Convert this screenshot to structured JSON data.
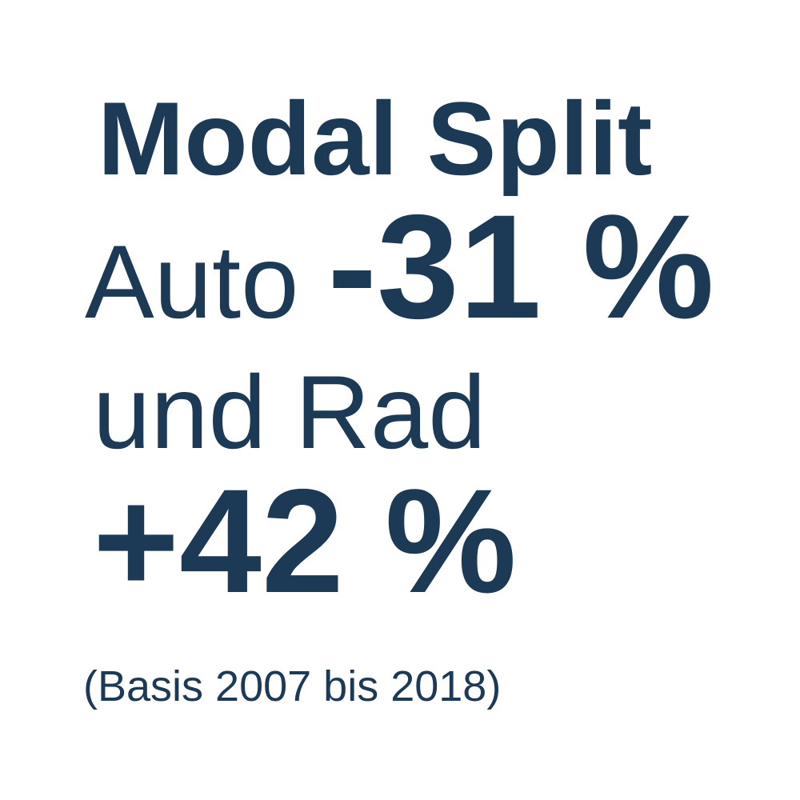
{
  "colors": {
    "background": "#ffffff",
    "ink": "#1c3a55"
  },
  "infographic": {
    "title": "Modal Split",
    "auto_label": "Auto",
    "auto_value": "-31 %",
    "rad_label": "und Rad",
    "rad_value": "+42 %",
    "footnote": "(Basis 2007 bis 2018)"
  },
  "chart_data": {
    "type": "table",
    "title": "Modal Split",
    "categories": [
      "Auto",
      "Rad"
    ],
    "values": [
      -31,
      42
    ],
    "unit": "%",
    "value_labels": [
      "-31 %",
      "+42 %"
    ],
    "annotation": "(Basis 2007 bis 2018)",
    "basis_period": "2007 bis 2018"
  }
}
